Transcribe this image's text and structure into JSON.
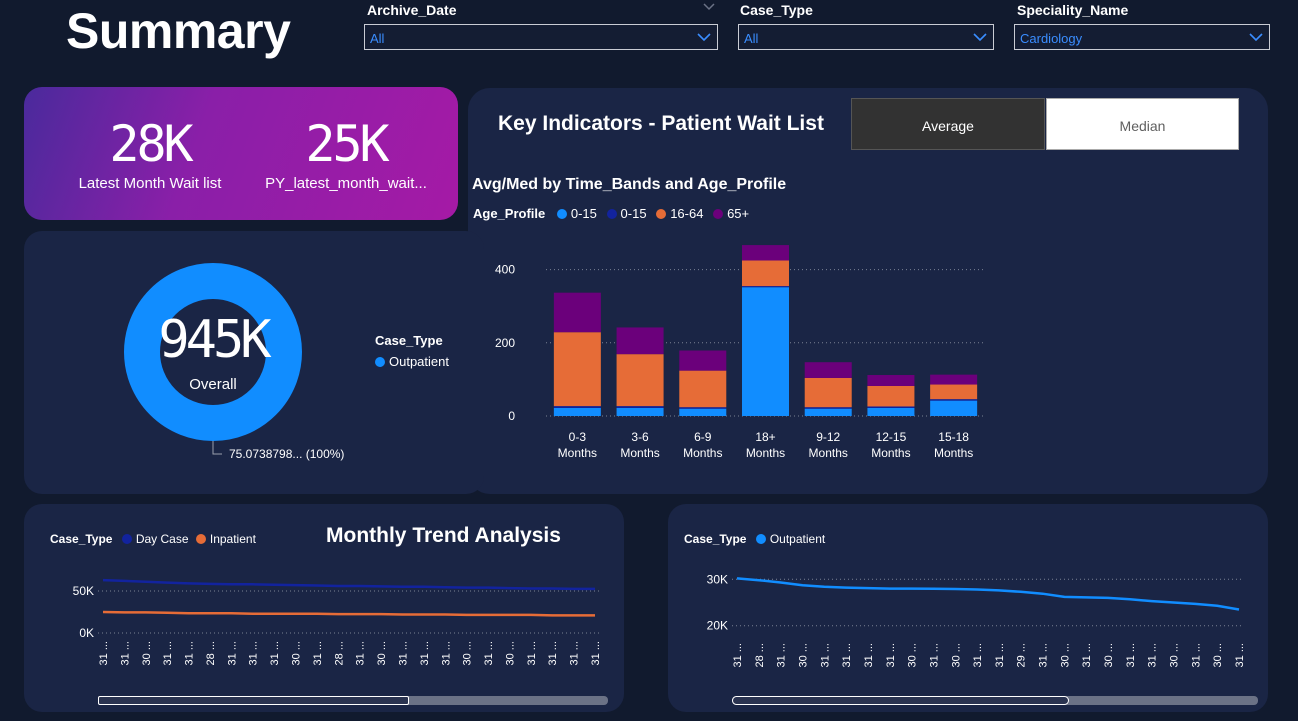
{
  "page_title": "Summary",
  "filters": [
    {
      "label": "Archive_Date",
      "value": "All"
    },
    {
      "label": "Case_Type",
      "value": "All"
    },
    {
      "label": "Speciality_Name",
      "value": "Cardiology"
    }
  ],
  "kpis": [
    {
      "value": "28K",
      "caption": "Latest Month Wait list"
    },
    {
      "value": "25K",
      "caption": "PY_latest_month_wait..."
    }
  ],
  "key_indicators": {
    "title": "Key Indicators - Patient Wait List",
    "toggle": {
      "average_label": "Average",
      "median_label": "Median",
      "selected": "Average"
    }
  },
  "donut": {
    "center_value": "945K",
    "center_label": "Overall",
    "slice_label": "75.0738798... (100%)",
    "legend_title": "Case_Type",
    "legend_items": [
      {
        "name": "Outpatient",
        "color": "#118dff"
      }
    ]
  },
  "bar_chart_meta": {
    "title": "Avg/Med by Time_Bands and Age_Profile",
    "legend_title": "Age_Profile",
    "legend_items": [
      {
        "name": "0-15",
        "color": "#118dff"
      },
      {
        "name": "0-15",
        "color": "#12239e"
      },
      {
        "name": "16-64",
        "color": "#e66c37"
      },
      {
        "name": "65+",
        "color": "#6b007b"
      }
    ]
  },
  "line_left_meta": {
    "section_title": "Monthly Trend Analysis",
    "legend_title": "Case_Type",
    "legend_items": [
      {
        "name": "Day Case",
        "color": "#12239e"
      },
      {
        "name": "Inpatient",
        "color": "#e66c37"
      }
    ],
    "scroll_fraction": 0.61
  },
  "line_right_meta": {
    "legend_title": "Case_Type",
    "legend_items": [
      {
        "name": "Outpatient",
        "color": "#118dff"
      }
    ],
    "scroll_fraction": 0.64
  },
  "chart_data": [
    {
      "type": "bar",
      "stacked": true,
      "categories": [
        "0-3 Months",
        "3-6 Months",
        "6-9 Months",
        "18+ Months",
        "9-12 Months",
        "12-15 Months",
        "15-18 Months"
      ],
      "series": [
        {
          "name": "0-15",
          "color": "#118dff",
          "values": [
            22,
            22,
            20,
            352,
            20,
            22,
            42
          ]
        },
        {
          "name": "0-15",
          "color": "#12239e",
          "values": [
            5,
            5,
            4,
            3,
            4,
            4,
            4
          ]
        },
        {
          "name": "16-64",
          "color": "#e66c37",
          "values": [
            202,
            142,
            100,
            70,
            80,
            56,
            40
          ]
        },
        {
          "name": "65+",
          "color": "#6b007b",
          "values": [
            108,
            73,
            55,
            42,
            43,
            30,
            27
          ]
        }
      ],
      "ylim": [
        0,
        470
      ],
      "yticks": [
        0,
        200,
        400
      ],
      "grid": true
    },
    {
      "type": "line",
      "x_tick_labels": [
        "31 ...",
        "31 ...",
        "30 ...",
        "31 ...",
        "31 ...",
        "28 ...",
        "31 ...",
        "31 ...",
        "31 ...",
        "30 ...",
        "31 ...",
        "28 ...",
        "31 ...",
        "30 ...",
        "31 ...",
        "31 ...",
        "31 ...",
        "30 ...",
        "31 ...",
        "30 ...",
        "31 ...",
        "31 ...",
        "31 ...",
        "31 ..."
      ],
      "series": [
        {
          "name": "Day Case",
          "color": "#12239e",
          "values": [
            63000,
            62000,
            61000,
            60000,
            59000,
            58500,
            58000,
            58000,
            57500,
            57000,
            56500,
            56000,
            56000,
            55500,
            55000,
            55000,
            54500,
            54000,
            54000,
            53500,
            53000,
            53000,
            52500,
            52500
          ]
        },
        {
          "name": "Inpatient",
          "color": "#e66c37",
          "values": [
            25000,
            24500,
            24500,
            24000,
            23500,
            23500,
            23500,
            23000,
            23000,
            23000,
            23000,
            22500,
            22500,
            22500,
            22000,
            22000,
            22000,
            21500,
            21500,
            21500,
            21500,
            21000,
            21000,
            21000
          ]
        }
      ],
      "ylim": [
        0,
        75000
      ],
      "yticks": [
        {
          "value": 0,
          "label": "0K"
        },
        {
          "value": 50000,
          "label": "50K"
        }
      ],
      "grid": true
    },
    {
      "type": "line",
      "x_tick_labels": [
        "31 ...",
        "28 ...",
        "31 ...",
        "30 ...",
        "31 ...",
        "31 ...",
        "31 ...",
        "31 ...",
        "30 ...",
        "31 ...",
        "30 ...",
        "31 ...",
        "31 ...",
        "29 ...",
        "31 ...",
        "30 ...",
        "31 ...",
        "30 ...",
        "31 ...",
        "31 ...",
        "30 ...",
        "31 ...",
        "30 ...",
        "31 ..."
      ],
      "series": [
        {
          "name": "Outpatient",
          "color": "#118dff",
          "values": [
            30200,
            29800,
            29300,
            28700,
            28400,
            28200,
            28100,
            28000,
            28000,
            27950,
            27900,
            27800,
            27600,
            27300,
            26900,
            26200,
            26100,
            26000,
            25700,
            25300,
            25000,
            24700,
            24300,
            23500
          ]
        }
      ],
      "ylim": [
        18000,
        32000
      ],
      "yticks": [
        {
          "value": 20000,
          "label": "20K"
        },
        {
          "value": 30000,
          "label": "30K"
        }
      ],
      "grid": true
    }
  ]
}
